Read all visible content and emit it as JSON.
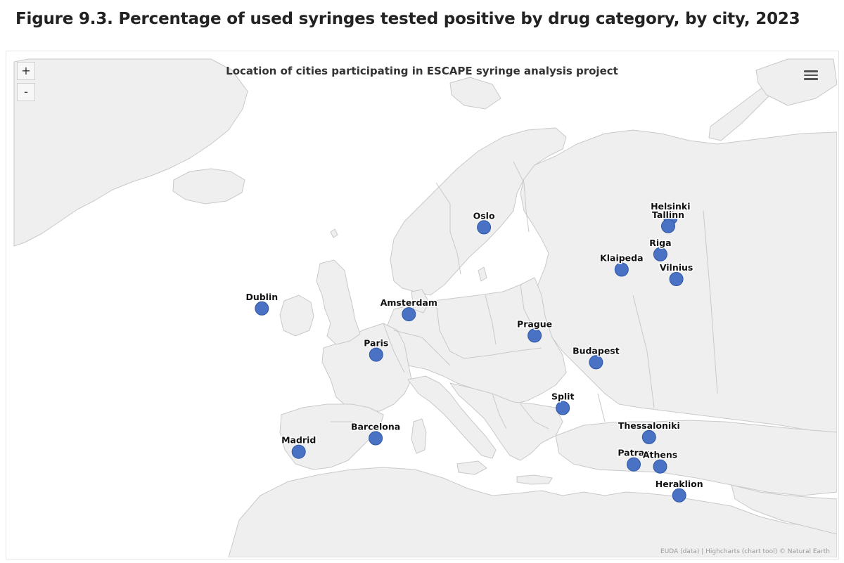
{
  "figure_title": "Figure 9.3. Percentage of used syringes tested positive by drug category, by city, 2023",
  "map": {
    "title": "Location of cities participating in ESCAPE syringe analysis project",
    "zoom_in_label": "+",
    "zoom_out_label": "-",
    "menu_icon": "hamburger-menu-icon",
    "credits": "EUDA (data) | Highcharts (chart tool) © Natural Earth",
    "colors": {
      "land": "#efefef",
      "border": "#c9c9c9",
      "point": "#4a72c4",
      "point_stroke": "#2f56a6"
    },
    "cities": [
      {
        "name": "Oslo",
        "lon": 10.75,
        "lat": 59.91
      },
      {
        "name": "Helsinki",
        "lon": 24.94,
        "lat": 60.17
      },
      {
        "name": "Tallinn",
        "lon": 24.75,
        "lat": 59.44
      },
      {
        "name": "Riga",
        "lon": 24.11,
        "lat": 56.95
      },
      {
        "name": "Klaipeda",
        "lon": 21.14,
        "lat": 55.71
      },
      {
        "name": "Vilnius",
        "lon": 25.28,
        "lat": 54.69
      },
      {
        "name": "Dublin",
        "lon": -6.26,
        "lat": 53.35
      },
      {
        "name": "Amsterdam",
        "lon": 4.9,
        "lat": 52.37
      },
      {
        "name": "Prague",
        "lon": 14.42,
        "lat": 50.08
      },
      {
        "name": "Paris",
        "lon": 2.35,
        "lat": 48.86
      },
      {
        "name": "Budapest",
        "lon": 19.04,
        "lat": 47.5
      },
      {
        "name": "Split",
        "lon": 16.44,
        "lat": 43.51
      },
      {
        "name": "Barcelona",
        "lon": 2.17,
        "lat": 41.39
      },
      {
        "name": "Madrid",
        "lon": -3.7,
        "lat": 40.42
      },
      {
        "name": "Thessaloniki",
        "lon": 22.94,
        "lat": 40.64
      },
      {
        "name": "Patras",
        "lon": 21.73,
        "lat": 38.25
      },
      {
        "name": "Athens",
        "lon": 23.73,
        "lat": 37.98
      },
      {
        "name": "Heraklion",
        "lon": 25.14,
        "lat": 35.34
      }
    ]
  }
}
